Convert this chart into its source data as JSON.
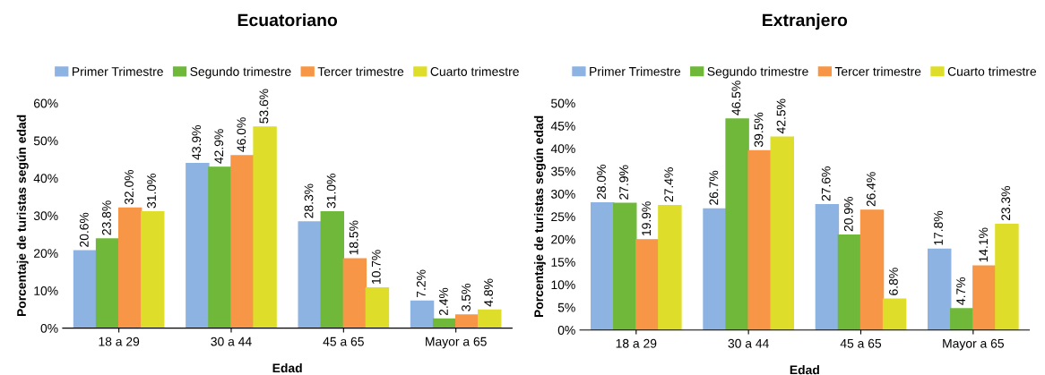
{
  "chart_data": [
    {
      "type": "bar",
      "title": "Ecuatoriano",
      "xlabel": "Edad",
      "ylabel": "Porcentaje de turistas según edad",
      "categories": [
        "18 a 29",
        "30 a 44",
        "45 a 65",
        "Mayor a 65"
      ],
      "ylim": [
        0,
        60
      ],
      "yticks": [
        {
          "value": 0,
          "label": "0%"
        },
        {
          "value": 10,
          "label": "10%"
        },
        {
          "value": 20,
          "label": "20%"
        },
        {
          "value": 30,
          "label": "30%"
        },
        {
          "value": 40,
          "label": "40%"
        },
        {
          "value": 50,
          "label": "50%"
        },
        {
          "value": 60,
          "label": "60%"
        }
      ],
      "legend": "top",
      "grid": false,
      "series": [
        {
          "name": "Primer Trimestre",
          "color": "#8db3e2",
          "values": [
            20.6,
            43.9,
            28.3,
            7.2
          ],
          "value_labels": [
            "20.6%",
            "43.9%",
            "28.3%",
            "7.2%"
          ]
        },
        {
          "name": "Segundo trimestre",
          "color": "#6fb83a",
          "values": [
            23.8,
            42.9,
            31.0,
            2.4
          ],
          "value_labels": [
            "23.8%",
            "42.9%",
            "31.0%",
            "2.4%"
          ]
        },
        {
          "name": "Tercer trimestre",
          "color": "#f79646",
          "values": [
            32.0,
            46.0,
            18.5,
            3.5
          ],
          "value_labels": [
            "32.0%",
            "46.0%",
            "18.5%",
            "3.5%"
          ]
        },
        {
          "name": "Cuarto trimestre",
          "color": "#dede2a",
          "values": [
            31.0,
            53.6,
            10.7,
            4.8
          ],
          "value_labels": [
            "31.0%",
            "53.6%",
            "10.7%",
            "4.8%"
          ]
        }
      ]
    },
    {
      "type": "bar",
      "title": "Extranjero",
      "xlabel": "Edad",
      "ylabel": "Porcentaje de turistas según edad",
      "categories": [
        "18 a 29",
        "30 a 44",
        "45 a 65",
        "Mayor a 65"
      ],
      "ylim": [
        0,
        50
      ],
      "yticks": [
        {
          "value": 0,
          "label": "0%"
        },
        {
          "value": 5,
          "label": "5%"
        },
        {
          "value": 10,
          "label": "10%"
        },
        {
          "value": 15,
          "label": "15%"
        },
        {
          "value": 20,
          "label": "20%"
        },
        {
          "value": 25,
          "label": "25%"
        },
        {
          "value": 30,
          "label": "30%"
        },
        {
          "value": 35,
          "label": "35%"
        },
        {
          "value": 40,
          "label": "40%"
        },
        {
          "value": 45,
          "label": "45%"
        },
        {
          "value": 50,
          "label": "50%"
        }
      ],
      "legend": "top",
      "grid": false,
      "series": [
        {
          "name": "Primer Trimestre",
          "color": "#8db3e2",
          "values": [
            28.0,
            26.7,
            27.6,
            17.8
          ],
          "value_labels": [
            "28.0%",
            "26.7%",
            "27.6%",
            "17.8%"
          ]
        },
        {
          "name": "Segundo trimestre",
          "color": "#6fb83a",
          "values": [
            27.9,
            46.5,
            20.9,
            4.7
          ],
          "value_labels": [
            "27.9%",
            "46.5%",
            "20.9%",
            "4.7%"
          ]
        },
        {
          "name": "Tercer trimestre",
          "color": "#f79646",
          "values": [
            19.9,
            39.5,
            26.4,
            14.1
          ],
          "value_labels": [
            "19.9%",
            "39.5%",
            "26.4%",
            "14.1%"
          ]
        },
        {
          "name": "Cuarto trimestre",
          "color": "#dede2a",
          "values": [
            27.4,
            42.5,
            6.8,
            23.3
          ],
          "value_labels": [
            "27.4%",
            "42.5%",
            "6.8%",
            "23.3%"
          ]
        }
      ]
    }
  ]
}
